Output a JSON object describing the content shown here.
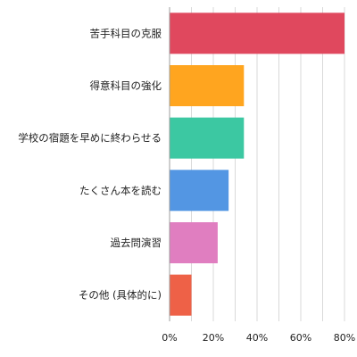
{
  "chart_data": {
    "type": "bar",
    "orientation": "horizontal",
    "categories": [
      "苦手科目の克服",
      "得意科目の強化",
      "学校の宿題を早めに終わらせる",
      "たくさん本を読む",
      "過去問演習",
      "その他 (具体的に)"
    ],
    "values": [
      80,
      34,
      34,
      27,
      22,
      10
    ],
    "unit": "%",
    "xlim": [
      0,
      80
    ],
    "xticks": [
      0,
      20,
      40,
      60,
      80
    ],
    "xtick_labels": [
      "0%",
      "20%",
      "40%",
      "60%",
      "80%"
    ],
    "colors": [
      "#e0485e",
      "#ffa51f",
      "#3cc8a2",
      "#5396e3",
      "#e07ec0",
      "#ee6147"
    ],
    "grid": true,
    "legend": "none",
    "title": "",
    "xlabel": "",
    "ylabel": ""
  }
}
